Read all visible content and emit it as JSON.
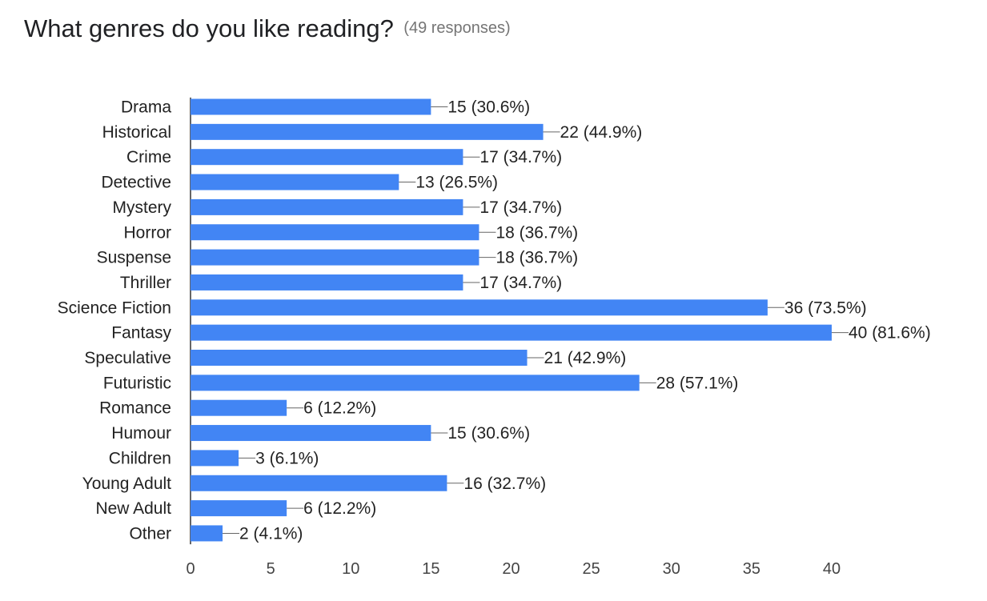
{
  "header": {
    "title": "What genres do you like reading?",
    "responses": "(49 responses)"
  },
  "colors": {
    "bar": "#4285f4",
    "axis": "#333333",
    "connector": "#666666",
    "label_text": "#222222",
    "tick_text": "#444444"
  },
  "chart_data": {
    "type": "bar",
    "orientation": "horizontal",
    "categories": [
      "Drama",
      "Historical",
      "Crime",
      "Detective",
      "Mystery",
      "Horror",
      "Suspense",
      "Thriller",
      "Science Fiction",
      "Fantasy",
      "Speculative",
      "Futuristic",
      "Romance",
      "Humour",
      "Children",
      "Young Adult",
      "New Adult",
      "Other"
    ],
    "values": [
      15,
      22,
      17,
      13,
      17,
      18,
      18,
      17,
      36,
      40,
      21,
      28,
      6,
      15,
      3,
      16,
      6,
      2
    ],
    "data_labels": [
      "15 (30.6%)",
      "22 (44.9%)",
      "17 (34.7%)",
      "13 (26.5%)",
      "17 (34.7%)",
      "18 (36.7%)",
      "18 (36.7%)",
      "17 (34.7%)",
      "36 (73.5%)",
      "40 (81.6%)",
      "21 (42.9%)",
      "28 (57.1%)",
      "6 (12.2%)",
      "15 (30.6%)",
      "3 (6.1%)",
      "16 (32.7%)",
      "6 (12.2%)",
      "2 (4.1%)"
    ],
    "x_ticks": [
      0,
      5,
      10,
      15,
      20,
      25,
      30,
      35,
      40
    ],
    "xlim": [
      0,
      40
    ],
    "grid": false,
    "legend": "none"
  }
}
